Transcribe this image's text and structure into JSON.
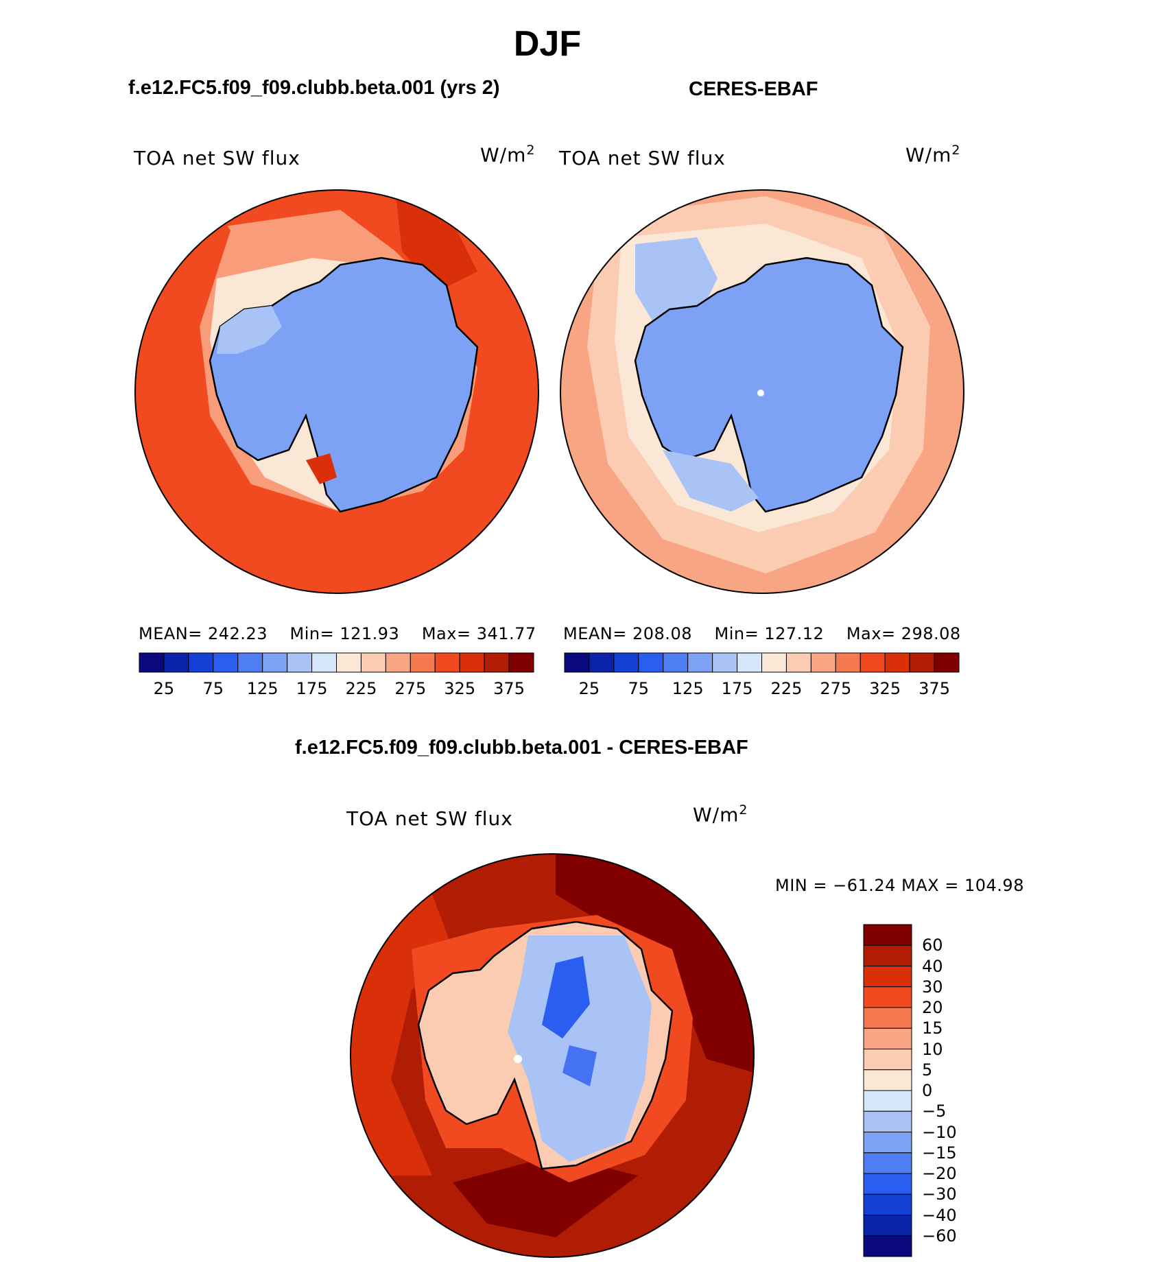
{
  "page_title": "DJF",
  "panels": {
    "model": {
      "heading": "f.e12.FC5.f09_f09.clubb.beta.001 (yrs 2)",
      "variable": "TOA net SW flux",
      "units": "W/m",
      "units_exp": "2",
      "mean_label": "MEAN=",
      "mean": "242.23",
      "min_label": "Min=",
      "min": "121.93",
      "max_label": "Max=",
      "max": "341.77"
    },
    "obs": {
      "heading": "CERES-EBAF",
      "variable": "TOA net SW flux",
      "units": "W/m",
      "units_exp": "2",
      "mean_label": "MEAN=",
      "mean": "208.08",
      "min_label": "Min=",
      "min": "127.12",
      "max_label": "Max=",
      "max": "298.08"
    },
    "diff": {
      "heading": "f.e12.FC5.f09_f09.clubb.beta.001 - CERES-EBAF",
      "variable": "TOA net SW flux",
      "units": "W/m",
      "units_exp": "2",
      "minmax": "MIN = −61.24 MAX = 104.98"
    }
  },
  "colorbar_abs": {
    "colors": [
      "#0a0a7e",
      "#0b23a8",
      "#1540d6",
      "#2a5ef0",
      "#4f7ef2",
      "#7da1f4",
      "#a9c3f7",
      "#d6e6fb",
      "#fbe7d6",
      "#fbcbb2",
      "#f8a584",
      "#f57a52",
      "#f24a20",
      "#d9300a",
      "#b11c05",
      "#800000"
    ],
    "labels": [
      "25",
      "75",
      "125",
      "175",
      "225",
      "275",
      "325",
      "375"
    ]
  },
  "colorbar_diff": {
    "colors": [
      "#800000",
      "#b11c05",
      "#d9300a",
      "#f24a20",
      "#f57a52",
      "#f8a584",
      "#fbcbb2",
      "#fbe7d6",
      "#d6e6fb",
      "#a9c3f7",
      "#7da1f4",
      "#4f7ef2",
      "#2a5ef0",
      "#1540d6",
      "#0b23a8",
      "#0a0a7e"
    ],
    "labels": [
      "60",
      "40",
      "30",
      "20",
      "15",
      "10",
      "5",
      "0",
      "−5",
      "−10",
      "−15",
      "−20",
      "−30",
      "−40",
      "−60"
    ]
  },
  "map_colors": {
    "ice": "#7da1f4",
    "ice_light": "#a9c3f7",
    "coast_edge": "#d6e6fb",
    "ocean_model": "#f24a20",
    "ocean_model_dark": "#d9300a",
    "ocean_model_light": "#f8a584",
    "ocean_obs": "#f8a584",
    "ocean_obs_light": "#fbcbb2",
    "ocean_obs_pale": "#fbe7d6",
    "diff_ocean": "#b11c05",
    "diff_ocean_dark": "#800000",
    "diff_ocean_mid": "#d9300a",
    "diff_land": "#fbcbb2",
    "diff_land_blue": "#a9c3f7",
    "diff_land_deep": "#2a5ef0"
  }
}
